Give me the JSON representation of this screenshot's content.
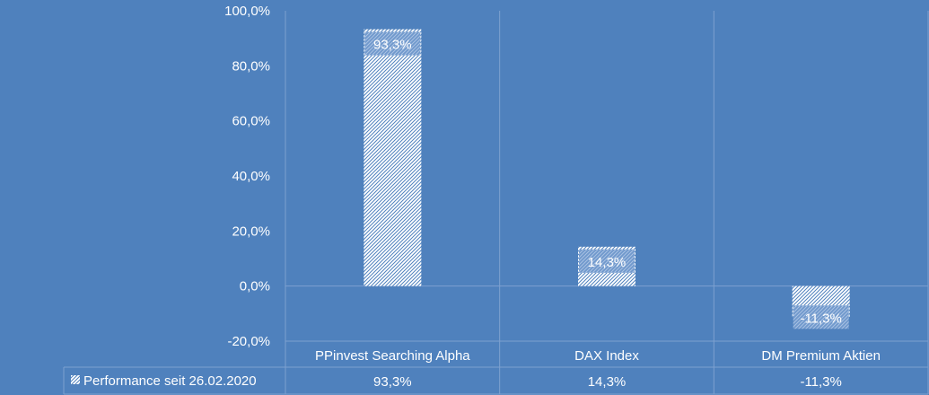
{
  "chart_data": {
    "type": "bar",
    "categories": [
      "PPinvest Searching Alpha",
      "DAX Index",
      "DM Premium Aktien"
    ],
    "series": [
      {
        "name": "Performance seit 26.02.2020",
        "values": [
          93.3,
          14.3,
          -11.3
        ]
      }
    ],
    "value_labels": [
      "93,3%",
      "14,3%",
      "-11,3%"
    ],
    "yticks": [
      100,
      80,
      60,
      40,
      20,
      0,
      -20
    ],
    "ytick_labels": [
      "100,0%",
      "80,0%",
      "60,0%",
      "40,0%",
      "20,0%",
      "0,0%",
      "-20,0%"
    ],
    "ylim": [
      -20,
      100
    ],
    "grid": true,
    "legend": "data-table-below",
    "colors": {
      "background": "#4f81bd",
      "bar_fill": "#ffffff",
      "bar_hatch": "#4f81bd",
      "grid": "#7ea1d0"
    }
  }
}
